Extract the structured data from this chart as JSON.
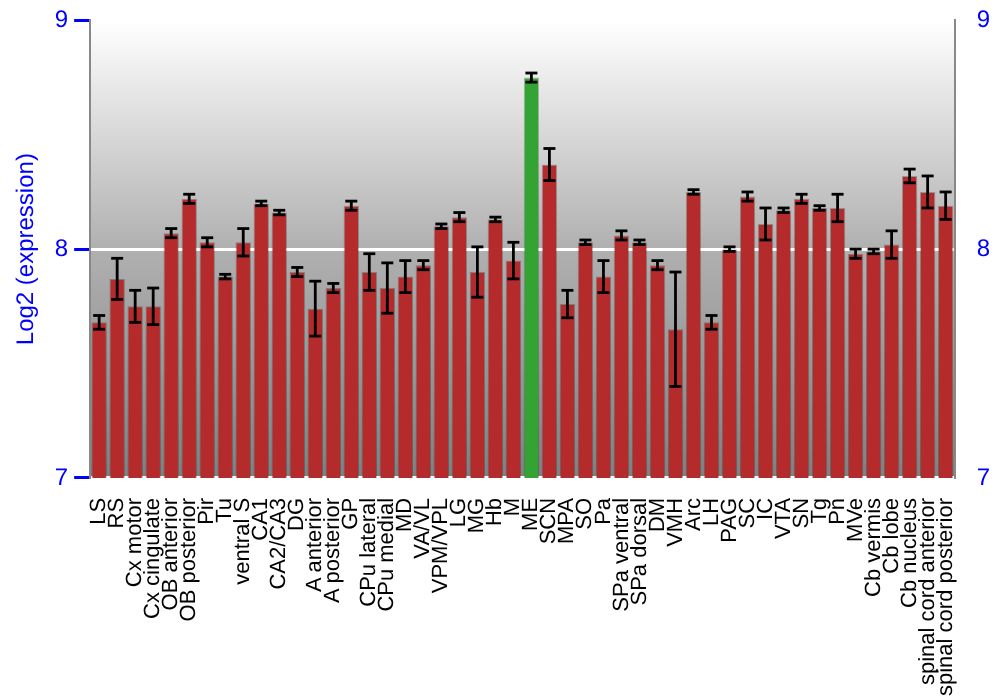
{
  "chart_data": {
    "type": "bar",
    "ylabel": "Log2 (expression)",
    "categories": [
      "LS",
      "RS",
      "Cx motor",
      "Cx cingulate",
      "OB anterior",
      "OB posterior",
      "Pir",
      "Tu",
      "ventral S",
      "CA1",
      "CA2/CA3",
      "DG",
      "A anterior",
      "A posterior",
      "GP",
      "CPu lateral",
      "CPu medial",
      "MD",
      "VA/VL",
      "VPM/VPL",
      "LG",
      "MG",
      "Hb",
      "M",
      "ME",
      "SCN",
      "MPA",
      "SO",
      "Pa",
      "SPa ventral",
      "SPa dorsal",
      "DM",
      "VMH",
      "Arc",
      "LH",
      "PAG",
      "SC",
      "IC",
      "VTA",
      "SN",
      "Tg",
      "Pn",
      "MVe",
      "Cb vermis",
      "Cb lobe",
      "Cb nucleus",
      "spinal cord anterior",
      "spinal cord posterior"
    ],
    "values": [
      7.68,
      7.87,
      7.75,
      7.75,
      8.07,
      8.22,
      8.03,
      7.88,
      8.03,
      8.2,
      8.16,
      7.9,
      7.74,
      7.83,
      8.19,
      7.9,
      7.83,
      7.88,
      7.93,
      8.1,
      8.14,
      7.9,
      8.13,
      7.95,
      8.75,
      8.37,
      7.76,
      8.03,
      7.88,
      8.06,
      8.03,
      7.93,
      7.65,
      8.25,
      7.68,
      8.0,
      8.23,
      8.11,
      8.17,
      8.22,
      8.18,
      8.18,
      7.98,
      7.99,
      8.02,
      8.32,
      8.25,
      8.19
    ],
    "errors": [
      0.03,
      0.09,
      0.07,
      0.08,
      0.02,
      0.02,
      0.02,
      0.01,
      0.06,
      0.01,
      0.01,
      0.02,
      0.12,
      0.02,
      0.02,
      0.08,
      0.11,
      0.07,
      0.02,
      0.01,
      0.02,
      0.11,
      0.01,
      0.08,
      0.02,
      0.07,
      0.06,
      0.01,
      0.07,
      0.02,
      0.01,
      0.02,
      0.25,
      0.01,
      0.03,
      0.01,
      0.02,
      0.07,
      0.01,
      0.02,
      0.01,
      0.06,
      0.02,
      0.01,
      0.06,
      0.03,
      0.07,
      0.06
    ],
    "colors": [
      "#b52a2a",
      "#b52a2a",
      "#b52a2a",
      "#b52a2a",
      "#b52a2a",
      "#b52a2a",
      "#b52a2a",
      "#b52a2a",
      "#b52a2a",
      "#b52a2a",
      "#b52a2a",
      "#b52a2a",
      "#b52a2a",
      "#b52a2a",
      "#b52a2a",
      "#b52a2a",
      "#b52a2a",
      "#b52a2a",
      "#b52a2a",
      "#b52a2a",
      "#b52a2a",
      "#b52a2a",
      "#b52a2a",
      "#b52a2a",
      "#33a333",
      "#b52a2a",
      "#b52a2a",
      "#b52a2a",
      "#b52a2a",
      "#b52a2a",
      "#b52a2a",
      "#b52a2a",
      "#b52a2a",
      "#b52a2a",
      "#b52a2a",
      "#b52a2a",
      "#b52a2a",
      "#b52a2a",
      "#b52a2a",
      "#b52a2a",
      "#b52a2a",
      "#b52a2a",
      "#b52a2a",
      "#b52a2a",
      "#b52a2a",
      "#b52a2a",
      "#b52a2a",
      "#b52a2a"
    ],
    "ylim": [
      7,
      9
    ],
    "yticks": [
      7,
      8,
      9
    ],
    "y2lim": [
      7,
      9
    ],
    "y2ticks": [
      7,
      8,
      9
    ],
    "grid": "y",
    "legend": false
  }
}
